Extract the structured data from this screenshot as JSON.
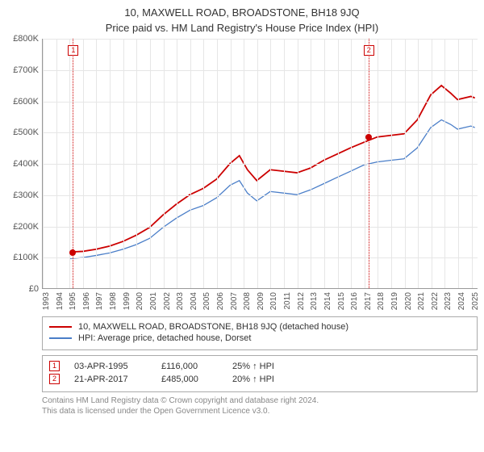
{
  "title_line1": "10, MAXWELL ROAD, BROADSTONE, BH18 9JQ",
  "title_line2": "Price paid vs. HM Land Registry's House Price Index (HPI)",
  "chart": {
    "type": "line",
    "x_min": 1993,
    "x_max": 2025.5,
    "x_ticks": [
      1993,
      1994,
      1995,
      1996,
      1997,
      1998,
      1999,
      2000,
      2001,
      2002,
      2003,
      2004,
      2005,
      2006,
      2007,
      2008,
      2009,
      2010,
      2011,
      2012,
      2013,
      2014,
      2015,
      2016,
      2017,
      2018,
      2019,
      2020,
      2021,
      2022,
      2023,
      2024,
      2025
    ],
    "y_min": 0,
    "y_max": 800,
    "y_ticks": [
      0,
      100,
      200,
      300,
      400,
      500,
      600,
      700,
      800
    ],
    "y_tick_prefix": "£",
    "y_tick_suffix": "K",
    "grid_color": "#e6e6e6",
    "axis_color": "#999999",
    "background_color": "#ffffff",
    "series": [
      {
        "name": "property",
        "label": "10, MAXWELL ROAD, BROADSTONE, BH18 9JQ (detached house)",
        "color": "#cc0000",
        "width": 1.8,
        "x": [
          1995,
          1996,
          1997,
          1998,
          1999,
          2000,
          2001,
          2002,
          2003,
          2004,
          2005,
          2006,
          2007,
          2007.7,
          2008.3,
          2009,
          2010,
          2011,
          2012,
          2013,
          2014,
          2015,
          2016,
          2017,
          2018,
          2019,
          2020,
          2021,
          2022,
          2022.8,
          2023.5,
          2024,
          2025,
          2025.3
        ],
        "y": [
          116,
          118,
          125,
          135,
          150,
          170,
          195,
          235,
          270,
          300,
          320,
          350,
          400,
          425,
          380,
          345,
          380,
          375,
          370,
          385,
          410,
          430,
          450,
          468,
          485,
          490,
          495,
          540,
          620,
          650,
          625,
          605,
          615,
          610
        ]
      },
      {
        "name": "hpi",
        "label": "HPI: Average price, detached house, Dorset",
        "color": "#4a7ec8",
        "width": 1.3,
        "x": [
          1995,
          1996,
          1997,
          1998,
          1999,
          2000,
          2001,
          2002,
          2003,
          2004,
          2005,
          2006,
          2007,
          2007.7,
          2008.3,
          2009,
          2010,
          2011,
          2012,
          2013,
          2014,
          2015,
          2016,
          2017,
          2018,
          2019,
          2020,
          2021,
          2022,
          2022.8,
          2023.5,
          2024,
          2025,
          2025.3
        ],
        "y": [
          95,
          98,
          105,
          113,
          125,
          140,
          160,
          195,
          225,
          250,
          265,
          290,
          330,
          345,
          305,
          280,
          310,
          305,
          300,
          315,
          335,
          355,
          375,
          395,
          405,
          410,
          415,
          450,
          515,
          540,
          525,
          510,
          520,
          515
        ]
      }
    ],
    "markers": [
      {
        "id": "1",
        "x": 1995.25,
        "y": 116,
        "color": "#cc0000"
      },
      {
        "id": "2",
        "x": 2017.3,
        "y": 485,
        "color": "#cc0000"
      }
    ],
    "marker_line_color": "#cc0000",
    "marker_dot_color": "#cc0000"
  },
  "legend": {
    "items": [
      {
        "color": "#cc0000",
        "label": "10, MAXWELL ROAD, BROADSTONE, BH18 9JQ (detached house)"
      },
      {
        "color": "#4a7ec8",
        "label": "HPI: Average price, detached house, Dorset"
      }
    ]
  },
  "sales": [
    {
      "id": "1",
      "date": "03-APR-1995",
      "price": "£116,000",
      "delta": "25% ↑ HPI",
      "color": "#cc0000"
    },
    {
      "id": "2",
      "date": "21-APR-2017",
      "price": "£485,000",
      "delta": "20% ↑ HPI",
      "color": "#cc0000"
    }
  ],
  "footer_line1": "Contains HM Land Registry data © Crown copyright and database right 2024.",
  "footer_line2": "This data is licensed under the Open Government Licence v3.0."
}
